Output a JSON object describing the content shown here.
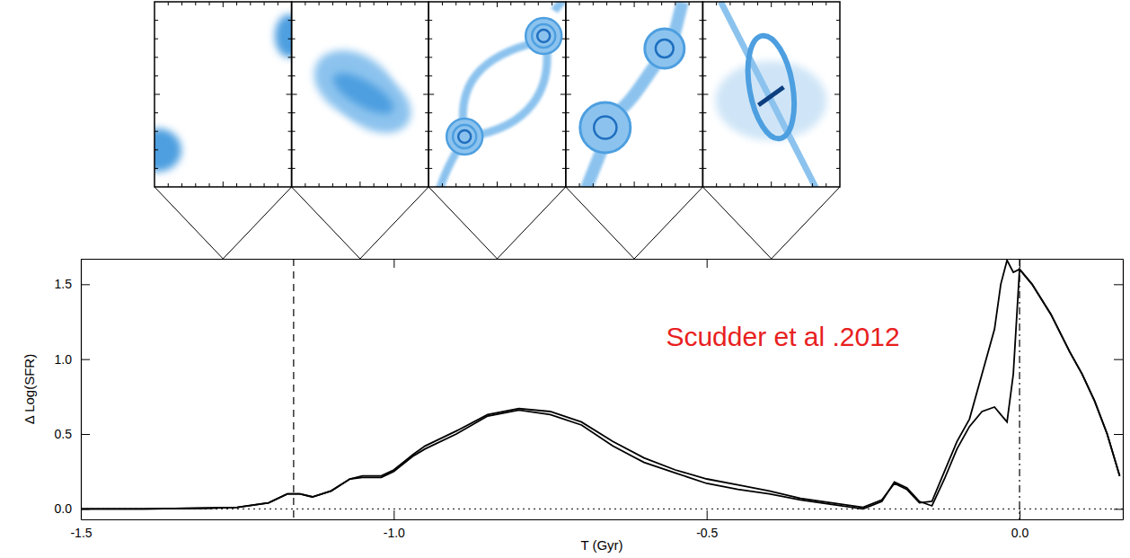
{
  "chart_data": {
    "type": "line",
    "x_label": "T (Gyr)",
    "y_label": "Δ Log(SFR)",
    "xlim": [
      -1.5,
      0.165
    ],
    "ylim": [
      -0.07,
      1.67
    ],
    "xticks": [
      -1.5,
      {
        "value": -1,
        "label": "-1.0"
      },
      -0.5,
      {
        "value": 0,
        "label": "0.0"
      }
    ],
    "yticks": [
      {
        "value": 0,
        "label": "0.0"
      },
      0.5,
      {
        "value": 1,
        "label": "1.0"
      },
      1.5
    ],
    "x": [
      -1.5,
      -1.4,
      -1.3,
      -1.25,
      -1.2,
      -1.17,
      -1.15,
      -1.13,
      -1.1,
      -1.07,
      -1.05,
      -1.02,
      -1.0,
      -0.97,
      -0.95,
      -0.9,
      -0.85,
      -0.8,
      -0.75,
      -0.7,
      -0.65,
      -0.6,
      -0.55,
      -0.5,
      -0.45,
      -0.4,
      -0.35,
      -0.3,
      -0.25,
      -0.22,
      -0.2,
      -0.18,
      -0.16,
      -0.14,
      -0.12,
      -0.1,
      -0.08,
      -0.06,
      -0.04,
      -0.03,
      -0.02,
      -0.01,
      0.0,
      0.02,
      0.05,
      0.08,
      0.1,
      0.12,
      0.14,
      0.16
    ],
    "series": [
      {
        "color": "#000000",
        "line_style": "solid",
        "values": [
          0,
          0,
          0.005,
          0.01,
          0.04,
          0.1,
          0.1,
          0.08,
          0.12,
          0.2,
          0.22,
          0.22,
          0.26,
          0.36,
          0.42,
          0.52,
          0.63,
          0.67,
          0.65,
          0.58,
          0.45,
          0.34,
          0.26,
          0.2,
          0.16,
          0.12,
          0.07,
          0.04,
          0.01,
          0.06,
          0.17,
          0.13,
          0.04,
          0.05,
          0.25,
          0.45,
          0.6,
          0.9,
          1.2,
          1.5,
          1.66,
          1.58,
          1.6,
          1.5,
          1.3,
          1.05,
          0.9,
          0.72,
          0.5,
          0.22
        ]
      },
      {
        "color": "#000000",
        "line_style": "solid",
        "values": [
          0,
          0,
          0.005,
          0.01,
          0.04,
          0.1,
          0.1,
          0.08,
          0.12,
          0.2,
          0.21,
          0.21,
          0.25,
          0.35,
          0.4,
          0.5,
          0.62,
          0.66,
          0.63,
          0.56,
          0.42,
          0.31,
          0.24,
          0.17,
          0.13,
          0.1,
          0.06,
          0.03,
          0.0,
          0.05,
          0.18,
          0.14,
          0.05,
          0.02,
          0.2,
          0.4,
          0.55,
          0.65,
          0.68,
          0.63,
          0.58,
          0.9,
          1.6,
          1.5,
          1.3,
          1.05,
          0.9,
          0.72,
          0.5,
          0.22
        ]
      }
    ],
    "vlines": [
      {
        "x": -1.16,
        "line_style": "dashed"
      },
      {
        "x": 0,
        "line_style": "dashdot"
      }
    ],
    "hlines": [
      {
        "y": 0,
        "line_style": "dotted"
      }
    ],
    "annotations": [
      {
        "text": "Scudder et al .2012",
        "x": -0.565,
        "y": 1.09,
        "color": "#e8201e"
      }
    ]
  }
}
